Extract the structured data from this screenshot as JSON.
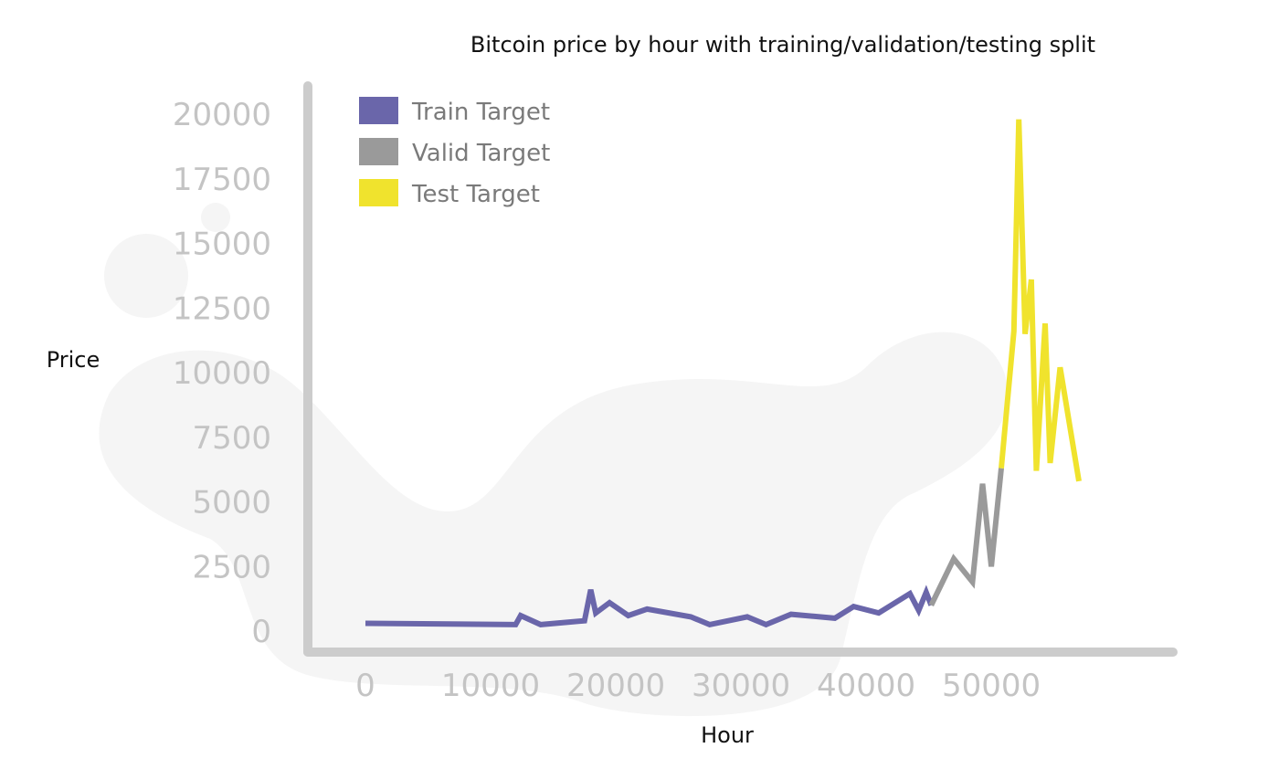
{
  "chart_data": {
    "type": "line",
    "title": "Bitcoin price by hour with training/validation/testing split",
    "xlabel": "Hour",
    "ylabel": "Price",
    "xlim": [
      0,
      57000
    ],
    "ylim": [
      0,
      20000
    ],
    "x_ticks": [
      "0",
      "10000",
      "20000",
      "30000",
      "40000",
      "50000"
    ],
    "y_ticks": [
      "0",
      "2500",
      "5000",
      "7500",
      "10000",
      "12500",
      "15000",
      "17500",
      "20000"
    ],
    "legend_position": "top-left",
    "grid": false,
    "series": [
      {
        "name": "Train Target",
        "color": "#6a66aa",
        "points": [
          [
            0,
            300
          ],
          [
            12000,
            250
          ],
          [
            12400,
            600
          ],
          [
            14000,
            250
          ],
          [
            17500,
            400
          ],
          [
            18000,
            1600
          ],
          [
            18400,
            700
          ],
          [
            19500,
            1100
          ],
          [
            21000,
            600
          ],
          [
            22500,
            850
          ],
          [
            26000,
            550
          ],
          [
            27500,
            250
          ],
          [
            30500,
            550
          ],
          [
            32000,
            250
          ],
          [
            34000,
            650
          ],
          [
            37500,
            500
          ],
          [
            39000,
            950
          ],
          [
            41000,
            700
          ],
          [
            43500,
            1450
          ],
          [
            44200,
            800
          ],
          [
            44800,
            1500
          ],
          [
            45200,
            1000
          ]
        ]
      },
      {
        "name": "Valid Target",
        "color": "#9a9a9a",
        "points": [
          [
            45200,
            1000
          ],
          [
            47000,
            2800
          ],
          [
            48500,
            1900
          ],
          [
            49300,
            5700
          ],
          [
            50000,
            2500
          ],
          [
            50800,
            6300
          ]
        ]
      },
      {
        "name": "Test Target",
        "color": "#f0e32d",
        "points": [
          [
            50800,
            6300
          ],
          [
            51800,
            11600
          ],
          [
            52200,
            19800
          ],
          [
            52700,
            11500
          ],
          [
            53200,
            13600
          ],
          [
            53600,
            6200
          ],
          [
            54300,
            11900
          ],
          [
            54700,
            6500
          ],
          [
            55500,
            10200
          ],
          [
            57000,
            5800
          ]
        ]
      }
    ]
  }
}
